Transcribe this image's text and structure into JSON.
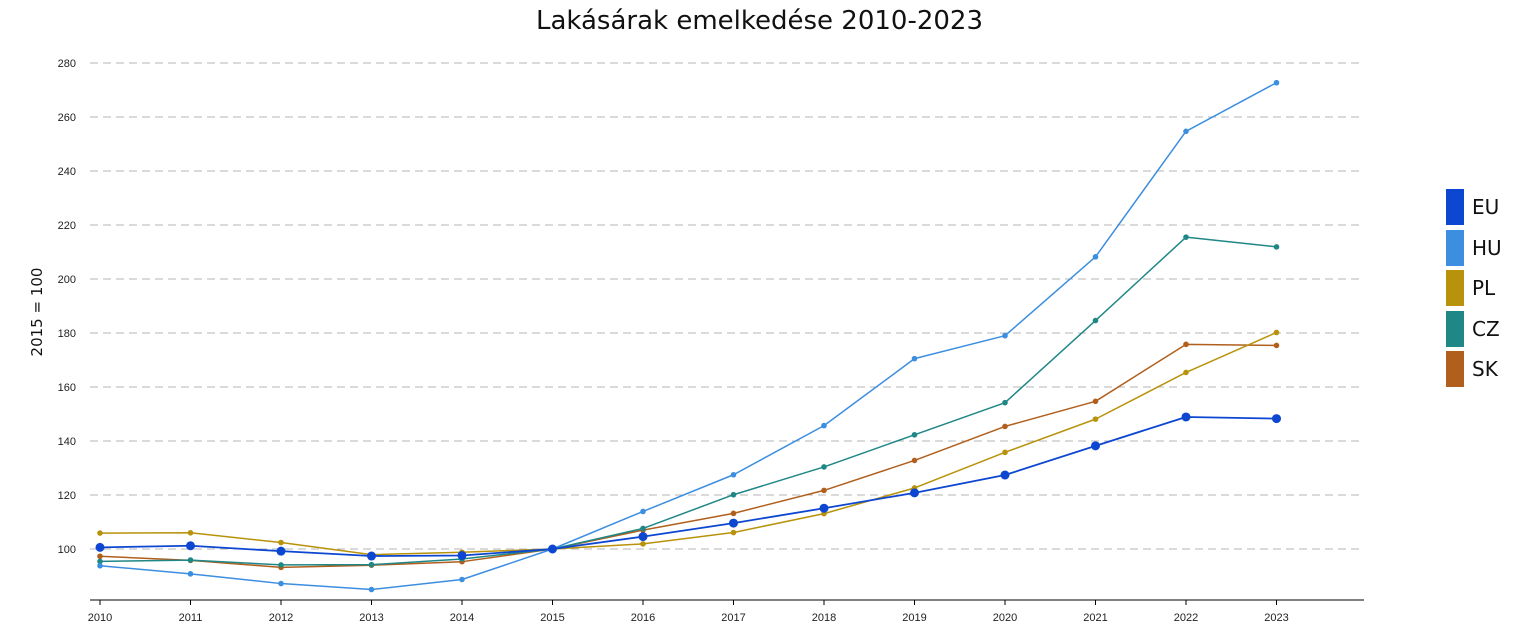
{
  "chart_data": {
    "type": "line",
    "title": "Lakásárak emelkedése 2010-2023",
    "xlabel": "",
    "ylabel": "2015 = 100",
    "x": [
      "2010",
      "2011",
      "2012",
      "2013",
      "2014",
      "2015",
      "2016",
      "2017",
      "2018",
      "2019",
      "2020",
      "2021",
      "2022",
      "2023"
    ],
    "ylim": [
      82,
      282
    ],
    "yticks": [
      100,
      120,
      140,
      160,
      180,
      200,
      220,
      240,
      260,
      280
    ],
    "grid": true,
    "legend_position": "right",
    "series": [
      {
        "name": "EU",
        "color": "#0d47d1",
        "values": [
          100.6,
          101.2,
          99.2,
          97.4,
          97.6,
          100.0,
          104.6,
          109.6,
          115.1,
          120.8,
          127.4,
          138.2,
          148.9,
          148.3
        ]
      },
      {
        "name": "HU",
        "color": "#3c8ee0",
        "values": [
          93.8,
          90.8,
          87.2,
          85.0,
          88.7,
          100.0,
          113.9,
          127.5,
          145.7,
          170.5,
          179.0,
          208.2,
          254.7,
          272.7
        ]
      },
      {
        "name": "PL",
        "color": "#b8920a",
        "values": [
          105.9,
          106.0,
          102.4,
          97.9,
          98.8,
          100.0,
          101.9,
          106.1,
          113.1,
          122.6,
          135.8,
          148.1,
          165.4,
          180.2
        ]
      },
      {
        "name": "CZ",
        "color": "#1f8786",
        "values": [
          95.4,
          95.9,
          94.1,
          94.2,
          96.3,
          100.0,
          107.6,
          120.1,
          130.4,
          142.3,
          154.2,
          184.6,
          215.5,
          211.9
        ]
      },
      {
        "name": "SK",
        "color": "#b05f1c",
        "values": [
          97.3,
          95.8,
          93.2,
          94.0,
          95.3,
          100.0,
          107.0,
          113.2,
          121.7,
          132.8,
          145.4,
          154.7,
          175.8,
          175.4
        ]
      }
    ]
  }
}
